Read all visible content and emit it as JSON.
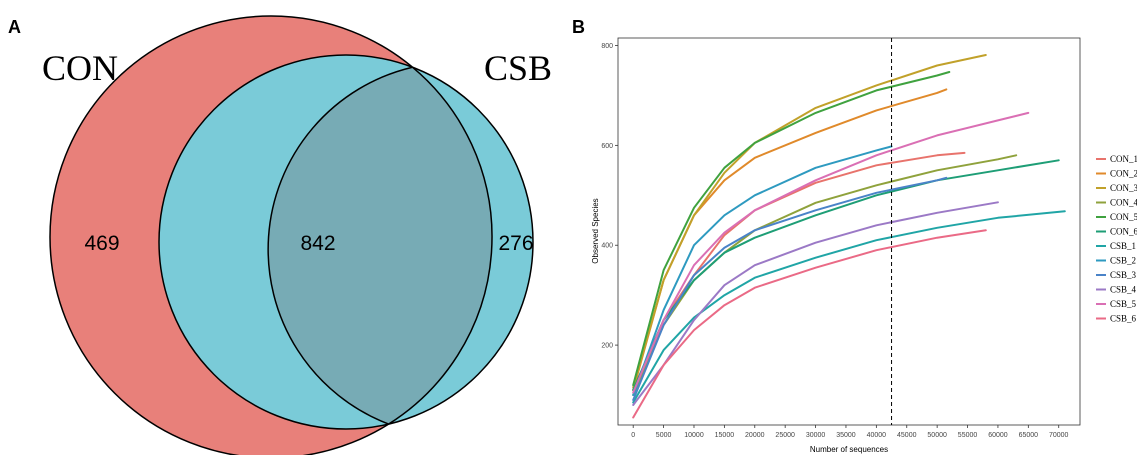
{
  "panels": {
    "a_label": "A",
    "b_label": "B"
  },
  "chart_data": [
    {
      "type": "venn",
      "sets": [
        {
          "name": "CON",
          "only": 469,
          "color": "#E8807A"
        },
        {
          "name": "CSB",
          "only": 276,
          "color": "#7ACBD8"
        }
      ],
      "intersection": 842,
      "intersection_color": "#77ABB5"
    },
    {
      "type": "line",
      "xlabel": "Number of sequences",
      "ylabel": "Observed Species",
      "xlim": [
        -2500,
        73500
      ],
      "ylim": [
        40,
        815
      ],
      "xticks": [
        0,
        5000,
        10000,
        15000,
        20000,
        25000,
        30000,
        35000,
        40000,
        45000,
        50000,
        55000,
        60000,
        65000,
        70000
      ],
      "yticks": [
        200,
        400,
        600,
        800
      ],
      "vline_x": 42500,
      "legend_position": "right",
      "grid": false,
      "series": [
        {
          "name": "CON_1",
          "color": "#E8736C",
          "points": [
            [
              0,
              110
            ],
            [
              5000,
              250
            ],
            [
              10000,
              340
            ],
            [
              15000,
              420
            ],
            [
              20000,
              470
            ],
            [
              30000,
              525
            ],
            [
              40000,
              560
            ],
            [
              50000,
              580
            ],
            [
              54500,
              585
            ]
          ]
        },
        {
          "name": "CON_2",
          "color": "#E08A2B",
          "points": [
            [
              0,
              110
            ],
            [
              5000,
              330
            ],
            [
              10000,
              460
            ],
            [
              15000,
              530
            ],
            [
              20000,
              575
            ],
            [
              30000,
              625
            ],
            [
              40000,
              670
            ],
            [
              50000,
              705
            ],
            [
              51500,
              712
            ]
          ]
        },
        {
          "name": "CON_3",
          "color": "#C1A12A",
          "points": [
            [
              0,
              115
            ],
            [
              5000,
              330
            ],
            [
              10000,
              460
            ],
            [
              15000,
              545
            ],
            [
              20000,
              605
            ],
            [
              30000,
              675
            ],
            [
              40000,
              720
            ],
            [
              50000,
              760
            ],
            [
              58000,
              781
            ]
          ]
        },
        {
          "name": "CON_4",
          "color": "#8FA23C",
          "points": [
            [
              0,
              100
            ],
            [
              5000,
              240
            ],
            [
              10000,
              330
            ],
            [
              15000,
              385
            ],
            [
              20000,
              430
            ],
            [
              30000,
              485
            ],
            [
              40000,
              520
            ],
            [
              50000,
              550
            ],
            [
              60000,
              572
            ],
            [
              63000,
              580
            ]
          ]
        },
        {
          "name": "CON_5",
          "color": "#3FA23F",
          "points": [
            [
              0,
              120
            ],
            [
              5000,
              350
            ],
            [
              10000,
              475
            ],
            [
              15000,
              555
            ],
            [
              20000,
              605
            ],
            [
              30000,
              665
            ],
            [
              40000,
              710
            ],
            [
              50000,
              740
            ],
            [
              52000,
              747
            ]
          ]
        },
        {
          "name": "CON_6",
          "color": "#1E9E76",
          "points": [
            [
              0,
              110
            ],
            [
              5000,
              250
            ],
            [
              10000,
              330
            ],
            [
              15000,
              385
            ],
            [
              20000,
              415
            ],
            [
              30000,
              460
            ],
            [
              40000,
              500
            ],
            [
              50000,
              530
            ],
            [
              60000,
              550
            ],
            [
              70000,
              570
            ]
          ]
        },
        {
          "name": "CSB_1",
          "color": "#20A5A6",
          "points": [
            [
              0,
              85
            ],
            [
              5000,
              190
            ],
            [
              10000,
              255
            ],
            [
              15000,
              300
            ],
            [
              20000,
              335
            ],
            [
              30000,
              375
            ],
            [
              40000,
              410
            ],
            [
              50000,
              435
            ],
            [
              60000,
              455
            ],
            [
              71000,
              468
            ]
          ]
        },
        {
          "name": "CSB_2",
          "color": "#2E9AC0",
          "points": [
            [
              0,
              100
            ],
            [
              5000,
              270
            ],
            [
              10000,
              400
            ],
            [
              15000,
              460
            ],
            [
              20000,
              500
            ],
            [
              30000,
              555
            ],
            [
              40000,
              590
            ],
            [
              42500,
              598
            ]
          ]
        },
        {
          "name": "CSB_3",
          "color": "#4A83C8",
          "points": [
            [
              0,
              90
            ],
            [
              5000,
              240
            ],
            [
              10000,
              340
            ],
            [
              15000,
              395
            ],
            [
              20000,
              430
            ],
            [
              30000,
              470
            ],
            [
              40000,
              505
            ],
            [
              50000,
              530
            ],
            [
              51500,
              535
            ]
          ]
        },
        {
          "name": "CSB_4",
          "color": "#9B79C6",
          "points": [
            [
              0,
              80
            ],
            [
              5000,
              160
            ],
            [
              10000,
              250
            ],
            [
              15000,
              320
            ],
            [
              20000,
              360
            ],
            [
              30000,
              405
            ],
            [
              40000,
              440
            ],
            [
              50000,
              465
            ],
            [
              60000,
              486
            ]
          ]
        },
        {
          "name": "CSB_5",
          "color": "#DA6FB4",
          "points": [
            [
              0,
              105
            ],
            [
              5000,
              250
            ],
            [
              10000,
              360
            ],
            [
              15000,
              425
            ],
            [
              20000,
              470
            ],
            [
              30000,
              530
            ],
            [
              40000,
              580
            ],
            [
              50000,
              620
            ],
            [
              60000,
              650
            ],
            [
              65000,
              665
            ]
          ]
        },
        {
          "name": "CSB_6",
          "color": "#EA6A86",
          "points": [
            [
              0,
              55
            ],
            [
              5000,
              160
            ],
            [
              10000,
              230
            ],
            [
              15000,
              280
            ],
            [
              20000,
              315
            ],
            [
              30000,
              355
            ],
            [
              40000,
              390
            ],
            [
              50000,
              415
            ],
            [
              58000,
              430
            ]
          ]
        }
      ]
    }
  ]
}
